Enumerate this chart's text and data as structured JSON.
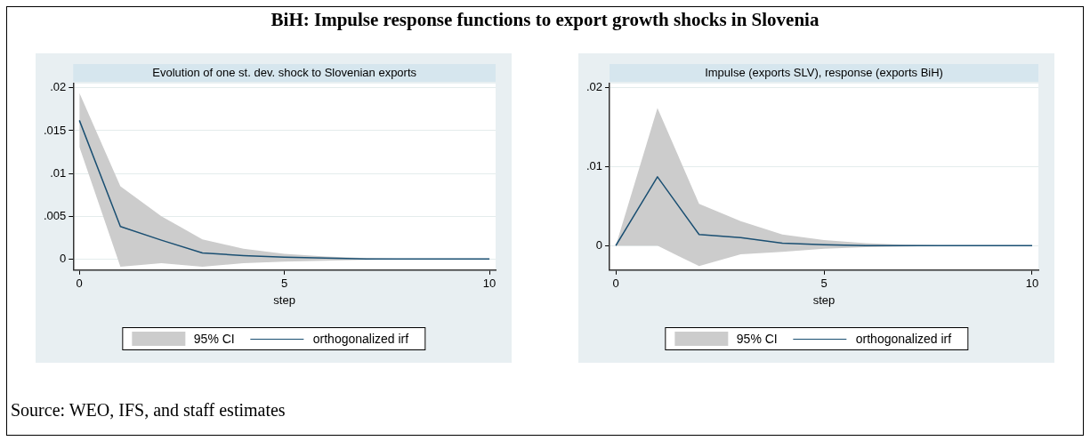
{
  "chart_data": [
    {
      "type": "line",
      "title": "BiH: Impulse response functions to export growth shocks in Slovenia",
      "subtitle": "Evolution of one st. dev. shock to Slovenian exports",
      "xlabel": "step",
      "x": [
        0,
        1,
        2,
        3,
        4,
        5,
        6,
        7,
        8,
        9,
        10
      ],
      "series": [
        {
          "name": "orthogonalized irf",
          "type": "line",
          "color": "#1a4f72",
          "values": [
            0.0162,
            0.0038,
            0.0022,
            0.0007,
            0.0004,
            0.0002,
            0.0001,
            0,
            0,
            0,
            0
          ],
          "upper": [
            0.0194,
            0.0085,
            0.005,
            0.0023,
            0.0012,
            0.0006,
            0.0003,
            0.0001,
            0,
            0,
            0
          ],
          "lower": [
            0.0131,
            -0.0009,
            -0.0005,
            -0.0009,
            -0.0005,
            -0.0003,
            -0.0002,
            -0.0001,
            0,
            0,
            0
          ]
        }
      ],
      "xlim": [
        -0.15,
        10.15
      ],
      "xticks": [
        0,
        5,
        10
      ],
      "ylim": [
        -0.0013,
        0.0205
      ],
      "yticks": [
        {
          "value": 0,
          "label": "0"
        },
        {
          "value": 0.005,
          "label": ".005"
        },
        {
          "value": 0.01,
          "label": ".01"
        },
        {
          "value": 0.015,
          "label": ".015"
        },
        {
          "value": 0.02,
          "label": ".02"
        }
      ],
      "grid": "y",
      "legend": "bottom",
      "marker": "none",
      "annotations": [
        "95% CI",
        "Source: WEO, IFS, and staff estimates"
      ]
    },
    {
      "type": "line",
      "subtitle": "Impulse (exports SLV), response (exports BiH)",
      "xlabel": "step",
      "x": [
        0,
        1,
        2,
        3,
        4,
        5,
        6,
        7,
        8,
        9,
        10
      ],
      "series": [
        {
          "name": "orthogonalized irf",
          "type": "line",
          "color": "#1a4f72",
          "values": [
            0,
            0.0087,
            0.0014,
            0.001,
            0.0003,
            0.0001,
            0,
            0,
            0,
            0,
            0
          ],
          "upper": [
            0,
            0.0174,
            0.0053,
            0.0031,
            0.0014,
            0.0007,
            0.0003,
            0.0001,
            0,
            0,
            0
          ],
          "lower": [
            0,
            0,
            -0.0026,
            -0.0011,
            -0.0008,
            -0.0004,
            -0.0002,
            -0.0001,
            0,
            0,
            0
          ]
        }
      ],
      "xlim": [
        -0.15,
        10.15
      ],
      "xticks": [
        0,
        5,
        10
      ],
      "ylim": [
        -0.0031,
        0.0205
      ],
      "yticks": [
        {
          "value": 0,
          "label": "0"
        },
        {
          "value": 0.01,
          "label": ".01"
        },
        {
          "value": 0.02,
          "label": ".02"
        }
      ],
      "grid": "y",
      "legend": "bottom",
      "marker": "none",
      "annotations": [
        "95% CI"
      ]
    }
  ]
}
